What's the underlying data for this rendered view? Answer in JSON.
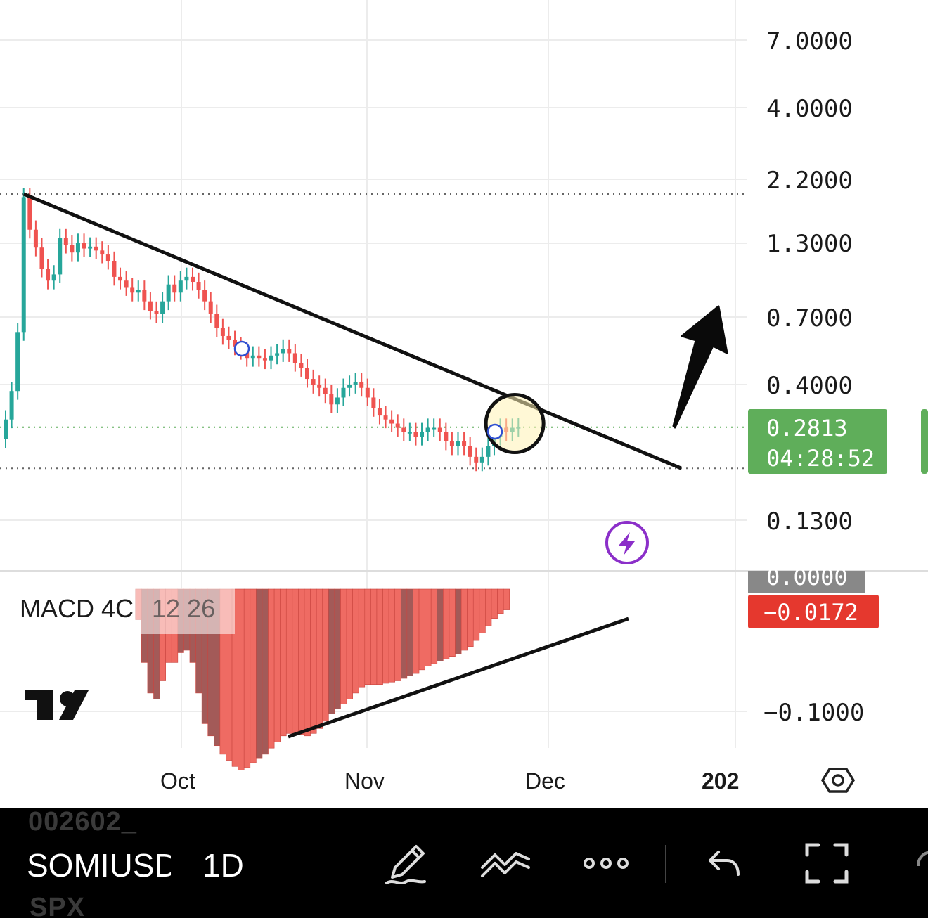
{
  "symbol": "SOMIUSDT",
  "interval": "1D",
  "ghost_row_top": "002602_",
  "ghost_row_bottom": "SPX",
  "price_axis": {
    "labels": [
      "7.0000",
      "4.0000",
      "2.2000",
      "1.3000",
      "0.7000",
      "0.4000",
      "0.1300"
    ],
    "current_price": "0.2813",
    "countdown": "04:28:52"
  },
  "time_axis": {
    "labels": [
      "Oct",
      "Nov",
      "Dec",
      "202"
    ]
  },
  "macd": {
    "title": "MACD 4C",
    "params": "12 26",
    "axis_label_zero": "0.0000",
    "axis_label_neg": "−0.1000",
    "current_value": "−0.0172"
  },
  "colors": {
    "up": "#26a69a",
    "down": "#ef5350",
    "macd_bright": "#ef6b63",
    "macd_dark": "#a35a58",
    "price_tag": "#5fae5a",
    "macd_tag": "#e5382e",
    "zero_tag": "#888888",
    "grid": "#ececec"
  },
  "chart_data": {
    "type": "candlestick",
    "scale": "log",
    "x_range": [
      "2025-08-30",
      "2026-01-01"
    ],
    "y_range": [
      0.11,
      8.5
    ],
    "trendline": {
      "from": {
        "date": "2025-09-02",
        "price": 1.95
      },
      "to": {
        "date": "2025-12-20",
        "price": 0.2
      }
    },
    "horizontal_levels": [
      1.95,
      0.2813,
      0.2
    ],
    "candles": [
      {
        "date": "2025-08-30",
        "close": 0.3
      },
      {
        "date": "2025-08-31",
        "close": 0.38
      },
      {
        "date": "2025-09-01",
        "close": 0.62
      },
      {
        "date": "2025-09-02",
        "close": 1.9
      },
      {
        "date": "2025-09-03",
        "close": 1.45
      },
      {
        "date": "2025-09-04",
        "close": 1.25
      },
      {
        "date": "2025-09-05",
        "close": 1.05
      },
      {
        "date": "2025-09-06",
        "close": 0.95
      },
      {
        "date": "2025-09-07",
        "close": 1.0
      },
      {
        "date": "2025-09-08",
        "close": 1.35
      },
      {
        "date": "2025-09-09",
        "close": 1.28
      },
      {
        "date": "2025-09-10",
        "close": 1.2
      },
      {
        "date": "2025-09-11",
        "close": 1.3
      },
      {
        "date": "2025-09-12",
        "close": 1.24
      },
      {
        "date": "2025-09-13",
        "close": 1.26
      },
      {
        "date": "2025-09-14",
        "close": 1.22
      },
      {
        "date": "2025-09-15",
        "close": 1.18
      },
      {
        "date": "2025-09-16",
        "close": 1.12
      },
      {
        "date": "2025-09-17",
        "close": 0.98
      },
      {
        "date": "2025-09-18",
        "close": 0.95
      },
      {
        "date": "2025-09-19",
        "close": 0.9
      },
      {
        "date": "2025-09-20",
        "close": 0.86
      },
      {
        "date": "2025-09-21",
        "close": 0.88
      },
      {
        "date": "2025-09-22",
        "close": 0.8
      },
      {
        "date": "2025-09-23",
        "close": 0.74
      },
      {
        "date": "2025-09-24",
        "close": 0.72
      },
      {
        "date": "2025-09-25",
        "close": 0.8
      },
      {
        "date": "2025-09-26",
        "close": 0.92
      },
      {
        "date": "2025-09-27",
        "close": 0.86
      },
      {
        "date": "2025-09-28",
        "close": 0.95
      },
      {
        "date": "2025-09-29",
        "close": 0.98
      },
      {
        "date": "2025-09-30",
        "close": 0.94
      },
      {
        "date": "2025-10-01",
        "close": 0.88
      },
      {
        "date": "2025-10-02",
        "close": 0.8
      },
      {
        "date": "2025-10-03",
        "close": 0.72
      },
      {
        "date": "2025-10-04",
        "close": 0.64
      },
      {
        "date": "2025-10-05",
        "close": 0.6
      },
      {
        "date": "2025-10-06",
        "close": 0.58
      },
      {
        "date": "2025-10-07",
        "close": 0.55
      },
      {
        "date": "2025-10-08",
        "close": 0.53
      },
      {
        "date": "2025-10-09",
        "close": 0.5
      },
      {
        "date": "2025-10-10",
        "close": 0.51
      },
      {
        "date": "2025-10-11",
        "close": 0.5
      },
      {
        "date": "2025-10-12",
        "close": 0.49
      },
      {
        "date": "2025-10-13",
        "close": 0.51
      },
      {
        "date": "2025-10-14",
        "close": 0.52
      },
      {
        "date": "2025-10-15",
        "close": 0.54
      },
      {
        "date": "2025-10-16",
        "close": 0.52
      },
      {
        "date": "2025-10-17",
        "close": 0.48
      },
      {
        "date": "2025-10-18",
        "close": 0.46
      },
      {
        "date": "2025-10-19",
        "close": 0.42
      },
      {
        "date": "2025-10-20",
        "close": 0.4
      },
      {
        "date": "2025-10-21",
        "close": 0.39
      },
      {
        "date": "2025-10-22",
        "close": 0.37
      },
      {
        "date": "2025-10-23",
        "close": 0.34
      },
      {
        "date": "2025-10-24",
        "close": 0.36
      },
      {
        "date": "2025-10-25",
        "close": 0.39
      },
      {
        "date": "2025-10-26",
        "close": 0.4
      },
      {
        "date": "2025-10-27",
        "close": 0.41
      },
      {
        "date": "2025-10-28",
        "close": 0.39
      },
      {
        "date": "2025-10-29",
        "close": 0.36
      },
      {
        "date": "2025-10-30",
        "close": 0.33
      },
      {
        "date": "2025-10-31",
        "close": 0.31
      },
      {
        "date": "2025-11-01",
        "close": 0.3
      },
      {
        "date": "2025-11-02",
        "close": 0.29
      },
      {
        "date": "2025-11-03",
        "close": 0.28
      },
      {
        "date": "2025-11-04",
        "close": 0.27
      },
      {
        "date": "2025-11-05",
        "close": 0.27
      },
      {
        "date": "2025-11-06",
        "close": 0.26
      },
      {
        "date": "2025-11-07",
        "close": 0.27
      },
      {
        "date": "2025-11-08",
        "close": 0.28
      },
      {
        "date": "2025-11-09",
        "close": 0.28
      },
      {
        "date": "2025-11-10",
        "close": 0.27
      },
      {
        "date": "2025-11-11",
        "close": 0.25
      },
      {
        "date": "2025-11-12",
        "close": 0.24
      },
      {
        "date": "2025-11-13",
        "close": 0.25
      },
      {
        "date": "2025-11-14",
        "close": 0.24
      },
      {
        "date": "2025-11-15",
        "close": 0.22
      },
      {
        "date": "2025-11-16",
        "close": 0.21
      },
      {
        "date": "2025-11-17",
        "close": 0.22
      },
      {
        "date": "2025-11-18",
        "close": 0.24
      },
      {
        "date": "2025-11-19",
        "close": 0.26
      },
      {
        "date": "2025-11-20",
        "close": 0.28
      },
      {
        "date": "2025-11-21",
        "close": 0.27
      },
      {
        "date": "2025-11-22",
        "close": 0.28
      },
      {
        "date": "2025-11-23",
        "close": 0.2813
      }
    ],
    "macd_histogram": {
      "dates_start": "2025-09-21",
      "values": [
        -0.025,
        -0.06,
        -0.085,
        -0.09,
        -0.075,
        -0.06,
        -0.06,
        -0.052,
        -0.05,
        -0.06,
        -0.085,
        -0.11,
        -0.12,
        -0.128,
        -0.135,
        -0.14,
        -0.145,
        -0.148,
        -0.146,
        -0.142,
        -0.138,
        -0.135,
        -0.13,
        -0.125,
        -0.12,
        -0.118,
        -0.118,
        -0.119,
        -0.12,
        -0.118,
        -0.114,
        -0.108,
        -0.102,
        -0.098,
        -0.094,
        -0.09,
        -0.085,
        -0.08,
        -0.078,
        -0.078,
        -0.078,
        -0.077,
        -0.076,
        -0.075,
        -0.073,
        -0.071,
        -0.069,
        -0.066,
        -0.063,
        -0.061,
        -0.059,
        -0.057,
        -0.055,
        -0.053,
        -0.05,
        -0.047,
        -0.042,
        -0.036,
        -0.03,
        -0.024,
        -0.02,
        -0.017
      ],
      "dark_bars": [
        1,
        2,
        3,
        7,
        8,
        9,
        10,
        11,
        12,
        13,
        20,
        21,
        32,
        33,
        44,
        45,
        50,
        53
      ]
    },
    "annotations": [
      {
        "type": "circle",
        "date": "2025-11-21",
        "price": 0.28
      },
      {
        "type": "arrow",
        "direction": "up"
      }
    ],
    "ylabel": ""
  }
}
